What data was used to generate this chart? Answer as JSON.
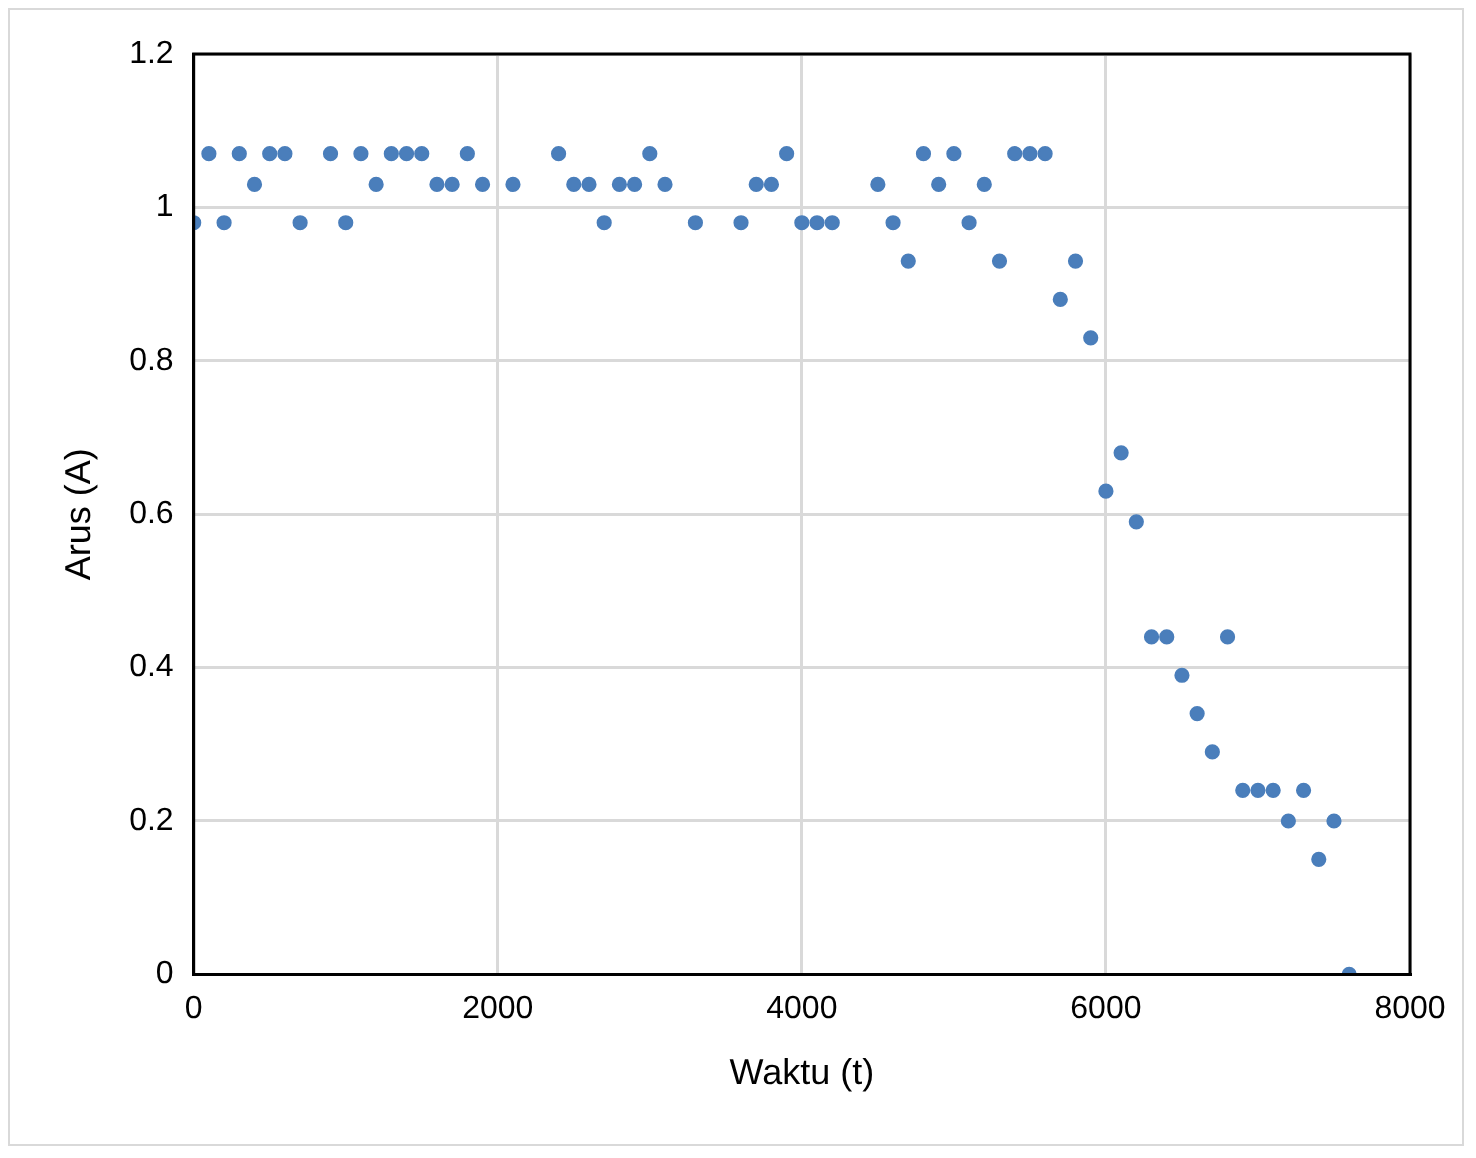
{
  "chart_data": {
    "type": "scatter",
    "xlabel": "Waktu (t)",
    "ylabel": "Arus (A)",
    "x": [
      0,
      100,
      200,
      300,
      400,
      500,
      600,
      700,
      900,
      1000,
      1100,
      1200,
      1300,
      1400,
      1500,
      1600,
      1700,
      1800,
      1900,
      2100,
      2400,
      2500,
      2600,
      2700,
      2800,
      2900,
      3000,
      3100,
      3300,
      3600,
      3700,
      3800,
      3900,
      4000,
      4100,
      4200,
      4500,
      4600,
      4700,
      4800,
      4900,
      5000,
      5100,
      5200,
      5300,
      5400,
      5500,
      5600,
      5700,
      5800,
      5900,
      6000,
      6100,
      6200,
      6300,
      6400,
      6500,
      6600,
      6700,
      6800,
      6900,
      7000,
      7100,
      7200,
      7300,
      7400,
      7500,
      7600
    ],
    "series": [
      {
        "color": "#4a7ebb",
        "values": [
          0.98,
          1.07,
          0.98,
          1.07,
          1.03,
          1.07,
          1.07,
          0.98,
          1.07,
          0.98,
          1.07,
          1.03,
          1.07,
          1.07,
          1.07,
          1.03,
          1.03,
          1.07,
          1.03,
          1.03,
          1.07,
          1.03,
          1.03,
          0.98,
          1.03,
          1.03,
          1.07,
          1.03,
          0.98,
          0.98,
          1.03,
          1.03,
          1.07,
          0.98,
          0.98,
          0.98,
          1.03,
          0.98,
          0.93,
          1.07,
          1.03,
          1.07,
          0.98,
          1.03,
          0.93,
          1.07,
          1.07,
          1.07,
          0.88,
          0.93,
          0.83,
          0.63,
          0.68,
          0.59,
          0.44,
          0.44,
          0.39,
          0.34,
          0.29,
          0.44,
          0.24,
          0.24,
          0.24,
          0.2,
          0.24,
          0.15,
          0.2,
          0
        ]
      }
    ],
    "xlim": [
      0,
      8000
    ],
    "xticks": [
      0,
      2000,
      4000,
      6000,
      8000
    ],
    "ylim": [
      0,
      1.2
    ],
    "yticks": [
      0,
      0.2,
      0.4,
      0.6,
      0.8,
      1,
      1.2
    ],
    "grid": true,
    "legend": false,
    "marker": "circle"
  }
}
